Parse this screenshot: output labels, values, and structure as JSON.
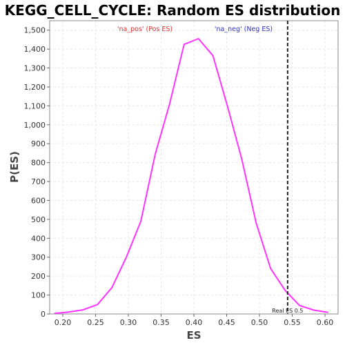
{
  "chart_data": {
    "type": "line",
    "title": "KEGG_CELL_CYCLE: Random ES distribution",
    "xlabel": "ES",
    "ylabel": "P(ES)",
    "xlim": [
      0.18,
      0.62
    ],
    "ylim": [
      0,
      1550
    ],
    "xticks": [
      0.2,
      0.25,
      0.3,
      0.35,
      0.4,
      0.45,
      0.5,
      0.55,
      0.6
    ],
    "xtick_labels": [
      "0.20",
      "0.25",
      "0.30",
      "0.35",
      "0.40",
      "0.45",
      "0.50",
      "0.55",
      "0.60"
    ],
    "yticks": [
      0,
      100,
      200,
      300,
      400,
      500,
      600,
      700,
      800,
      900,
      1000,
      1100,
      1200,
      1300,
      1400,
      1500
    ],
    "ytick_labels": [
      "0",
      "100",
      "200",
      "300",
      "400",
      "500",
      "600",
      "700",
      "800",
      "900",
      "1,000",
      "1,100",
      "1,200",
      "1,300",
      "1,400",
      "1,500"
    ],
    "grid": true,
    "legend": [
      {
        "label": "'na_pos' (Pos ES)",
        "color": "#e03030"
      },
      {
        "label": "'na_neg' (Neg ES)",
        "color": "#3030c0"
      }
    ],
    "series": [
      {
        "color": "#ff33ff",
        "x": [
          0.187,
          0.209,
          0.231,
          0.253,
          0.275,
          0.297,
          0.319,
          0.341,
          0.363,
          0.385,
          0.407,
          0.429,
          0.451,
          0.473,
          0.495,
          0.517,
          0.539,
          0.561,
          0.583,
          0.605
        ],
        "y": [
          3,
          10,
          22,
          50,
          140,
          300,
          490,
          845,
          1110,
          1425,
          1455,
          1365,
          1100,
          820,
          480,
          240,
          125,
          45,
          20,
          8
        ]
      }
    ],
    "annotation": {
      "label": "Real ES 0.5",
      "x": 0.543,
      "color": "#222222"
    }
  }
}
